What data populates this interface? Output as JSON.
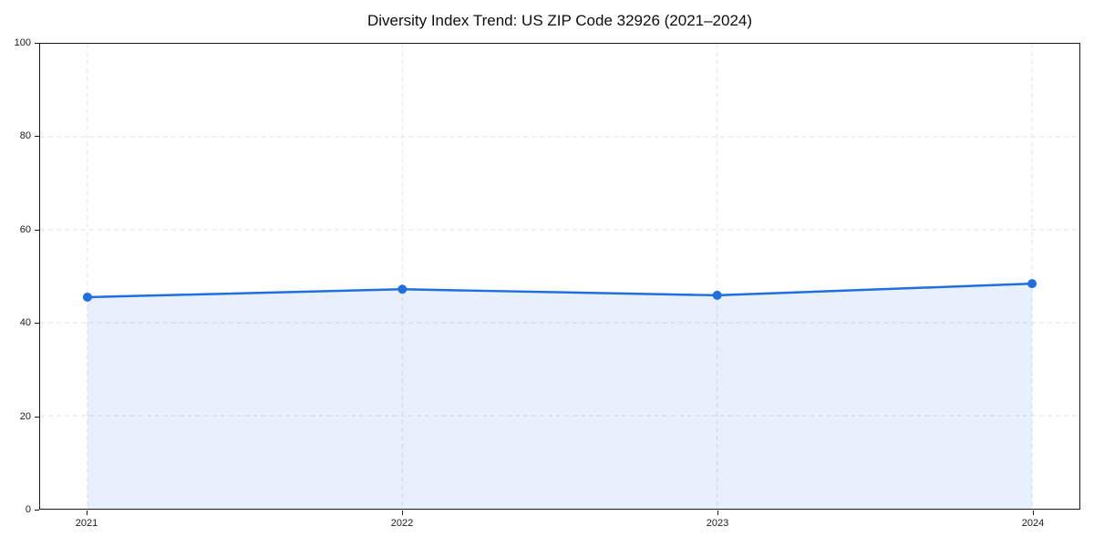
{
  "chart_data": {
    "type": "area",
    "title": "Diversity Index Trend: US ZIP Code 32926 (2021–2024)",
    "x_labels": [
      "2021",
      "2022",
      "2023",
      "2024"
    ],
    "series": [
      {
        "name": "Diversity Index",
        "values": [
          45.5,
          47.2,
          45.9,
          48.4
        ]
      }
    ],
    "xlabel": "",
    "ylabel": "",
    "ylim": [
      0,
      100
    ],
    "yticks": [
      0,
      20,
      40,
      60,
      80,
      100
    ],
    "grid": {
      "show": true,
      "style": "dashed",
      "axes": "both",
      "color": "#e2e2e2"
    },
    "legend_position": "none",
    "line_color": "#1f6fe0",
    "marker_color": "#1f6fe0",
    "fill_color": "rgba(31,111,224,0.10)",
    "spine_color": "#1a1a1a"
  }
}
